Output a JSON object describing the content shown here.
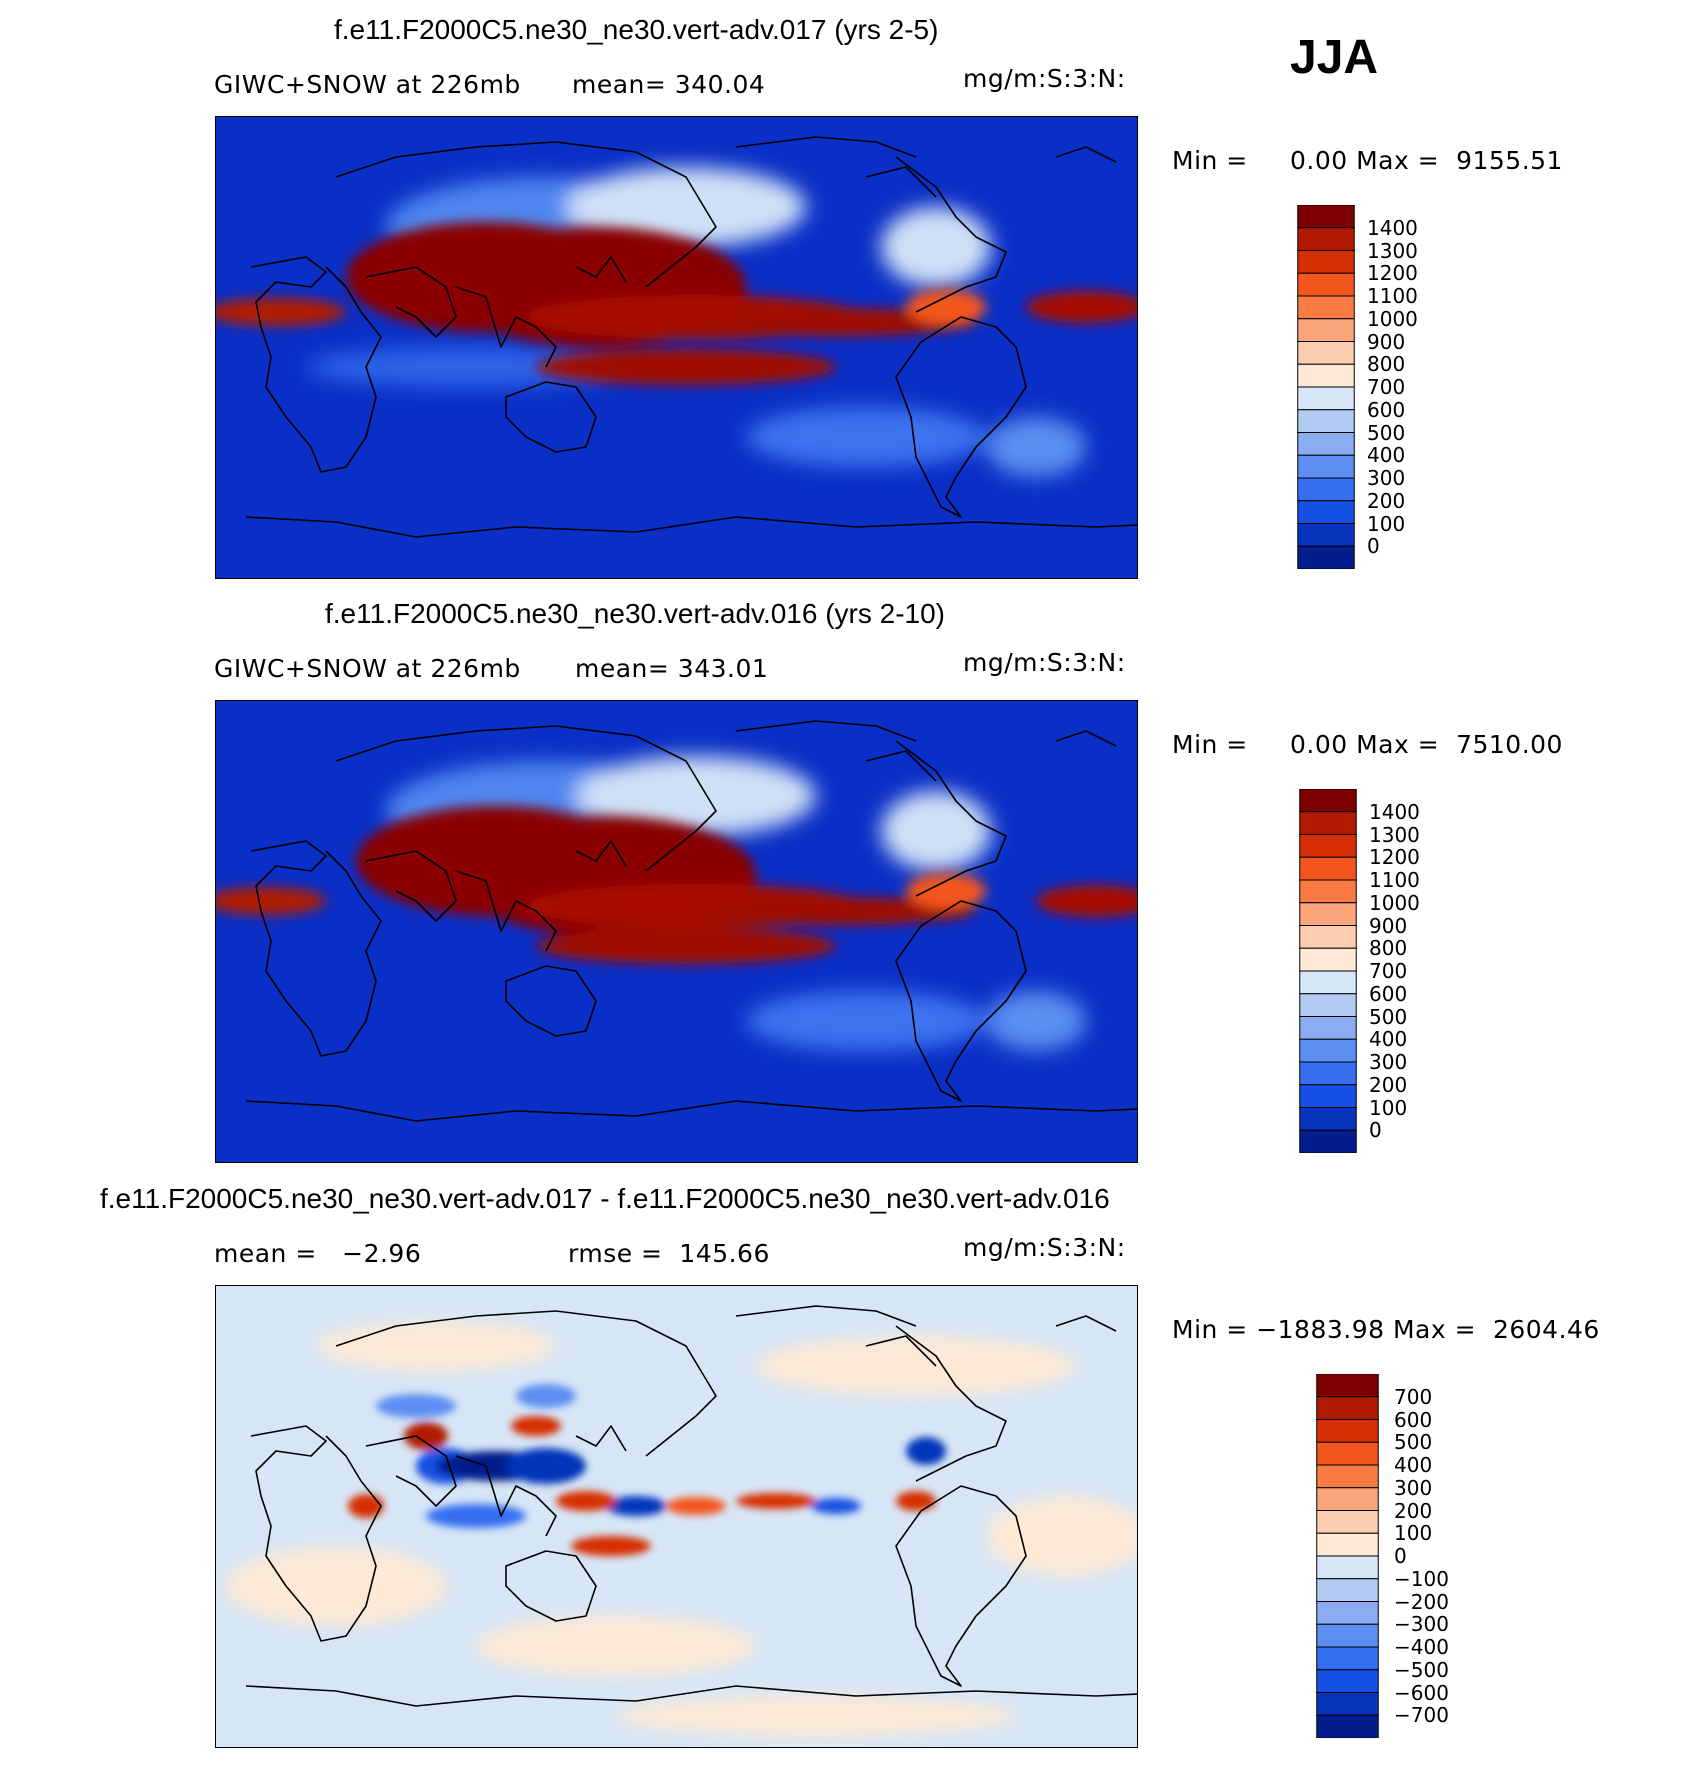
{
  "season_label": "JJA",
  "panels": [
    {
      "title": "f.e11.F2000C5.ne30_ne30.vert-adv.017 (yrs 2-5)",
      "left_label": "GIWC+SNOW at 226mb",
      "stat_label": "mean= 340.04",
      "units": "mg/m:S:3:N:",
      "minmax": "Min =     0.00 Max =  9155.51",
      "colorbar": {
        "labels": [
          "1400",
          "1300",
          "1200",
          "1100",
          "1000",
          "900",
          "800",
          "700",
          "600",
          "500",
          "400",
          "300",
          "200",
          "100",
          "0"
        ],
        "colors": [
          "#7f0000",
          "#b01a00",
          "#d62f06",
          "#f3561c",
          "#fb7b45",
          "#fba57a",
          "#fdcdb0",
          "#fde9d6",
          "#d6e6f6",
          "#b1cbf2",
          "#8bacf2",
          "#5d8ef2",
          "#356ef0",
          "#1450e3",
          "#0634bc",
          "#031d8c"
        ]
      }
    },
    {
      "title": "f.e11.F2000C5.ne30_ne30.vert-adv.016 (yrs 2-10)",
      "left_label": "GIWC+SNOW at 226mb",
      "stat_label": "mean= 343.01",
      "units": "mg/m:S:3:N:",
      "minmax": "Min =     0.00 Max =  7510.00",
      "colorbar": {
        "labels": [
          "1400",
          "1300",
          "1200",
          "1100",
          "1000",
          "900",
          "800",
          "700",
          "600",
          "500",
          "400",
          "300",
          "200",
          "100",
          "0"
        ],
        "colors": [
          "#7f0000",
          "#b01a00",
          "#d62f06",
          "#f3561c",
          "#fb7b45",
          "#fba57a",
          "#fdcdb0",
          "#fde9d6",
          "#d6e6f6",
          "#b1cbf2",
          "#8bacf2",
          "#5d8ef2",
          "#356ef0",
          "#1450e3",
          "#0634bc",
          "#031d8c"
        ]
      }
    },
    {
      "title": "f.e11.F2000C5.ne30_ne30.vert-adv.017 - f.e11.F2000C5.ne30_ne30.vert-adv.016",
      "left_label": "mean =   −2.96",
      "stat_label": "rmse =  145.66",
      "units": "mg/m:S:3:N:",
      "minmax": "Min = −1883.98 Max =  2604.46",
      "colorbar": {
        "labels": [
          "700",
          "600",
          "500",
          "400",
          "300",
          "200",
          "100",
          "0",
          "−100",
          "−200",
          "−300",
          "−400",
          "−500",
          "−600",
          "−700"
        ],
        "colors": [
          "#7f0000",
          "#b01a00",
          "#d62f06",
          "#f3561c",
          "#fb7b45",
          "#fba57a",
          "#fdcdb0",
          "#fde9d6",
          "#d6e6f6",
          "#b1cbf2",
          "#8bacf2",
          "#5d8ef2",
          "#356ef0",
          "#1450e3",
          "#0634bc",
          "#031d8c"
        ]
      }
    }
  ]
}
